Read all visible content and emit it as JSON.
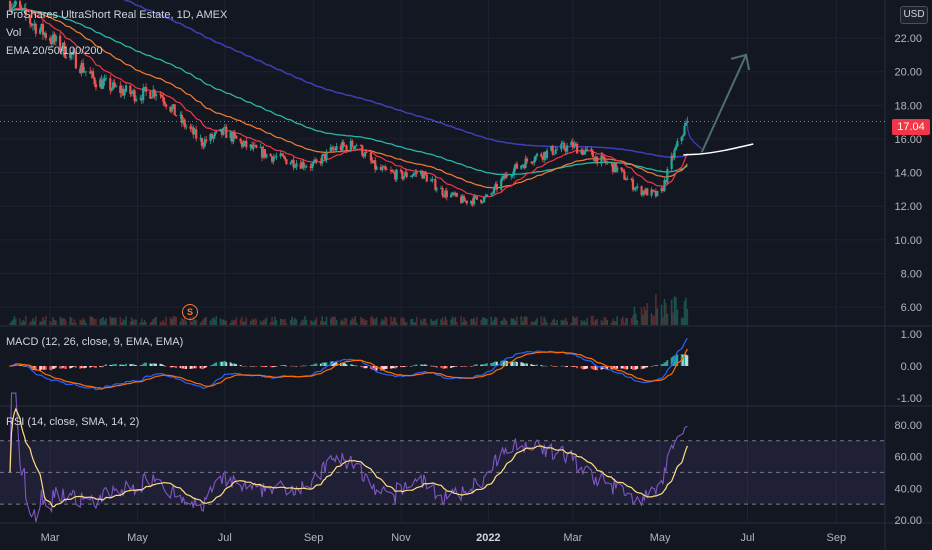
{
  "chart_data": {
    "type": "candlestick",
    "symbol_title": "ProShares UltraShort Real Estate, 1D, AMEX",
    "currency_label": "USD",
    "last_price_label": "17.04",
    "last_price": 17.04,
    "legend_volume": "Vol",
    "legend_ema": "EMA 20/50/100/200",
    "price_axis_ticks": [
      "22.00",
      "20.00",
      "18.00",
      "16.00",
      "14.00",
      "12.00",
      "10.00",
      "8.00",
      "6.00"
    ],
    "price_ylim": [
      5.5,
      23.5
    ],
    "x_axis_ticks": [
      "Mar",
      "May",
      "Jul",
      "Sep",
      "Nov",
      "2022",
      "Mar",
      "May",
      "Jul",
      "Sep"
    ],
    "price_path": [
      [
        "2021-02-01",
        24.2
      ],
      [
        "2021-02-15",
        23.0
      ],
      [
        "2021-03-01",
        22.0
      ],
      [
        "2021-03-15",
        21.0
      ],
      [
        "2021-04-01",
        19.5
      ],
      [
        "2021-04-15",
        19.0
      ],
      [
        "2021-05-01",
        18.6
      ],
      [
        "2021-05-15",
        18.9
      ],
      [
        "2021-06-01",
        17.0
      ],
      [
        "2021-06-15",
        15.8
      ],
      [
        "2021-07-01",
        16.4
      ],
      [
        "2021-07-15",
        15.6
      ],
      [
        "2021-08-01",
        15.0
      ],
      [
        "2021-08-15",
        14.7
      ],
      [
        "2021-09-01",
        14.4
      ],
      [
        "2021-09-15",
        15.4
      ],
      [
        "2021-10-01",
        15.7
      ],
      [
        "2021-10-15",
        14.2
      ],
      [
        "2021-11-01",
        13.8
      ],
      [
        "2021-11-15",
        14.0
      ],
      [
        "2021-12-01",
        12.8
      ],
      [
        "2021-12-15",
        12.3
      ],
      [
        "2022-01-01",
        12.5
      ],
      [
        "2022-01-15",
        14.0
      ],
      [
        "2022-02-01",
        14.9
      ],
      [
        "2022-02-15",
        15.3
      ],
      [
        "2022-03-01",
        15.6
      ],
      [
        "2022-03-15",
        15.0
      ],
      [
        "2022-04-01",
        14.2
      ],
      [
        "2022-04-15",
        13.0
      ],
      [
        "2022-05-01",
        12.6
      ],
      [
        "2022-05-10",
        15.0
      ],
      [
        "2022-05-20",
        17.04
      ]
    ],
    "projection_arrow": {
      "from": [
        "2022-05-30",
        15.2
      ],
      "to": [
        "2022-06-30",
        21.0
      ]
    },
    "macd": {
      "title": "MACD (12, 26, close, 9, EMA, EMA)",
      "ticks": [
        "1.00",
        "0.00",
        "-1.00"
      ],
      "ylim": [
        -1.1,
        1.1
      ]
    },
    "rsi": {
      "title": "RSI (14, close, SMA, 14, 2)",
      "ticks": [
        "80.00",
        "60.00",
        "40.00",
        "20.00"
      ],
      "ylim": [
        20,
        90
      ],
      "band": [
        30,
        70
      ]
    },
    "colors": {
      "background": "#131722",
      "up": "#26a69a",
      "down": "#ef5350",
      "ema20": "#f23645",
      "ema50": "#f57c33",
      "ema100": "#29b6a4",
      "ema200": "#3f3fb5",
      "macd_line": "#2962ff",
      "signal_line": "#ff6d00",
      "rsi_line": "#7e57c2",
      "rsi_ma": "#ffe082",
      "arrow": "#4e6e6b"
    }
  }
}
